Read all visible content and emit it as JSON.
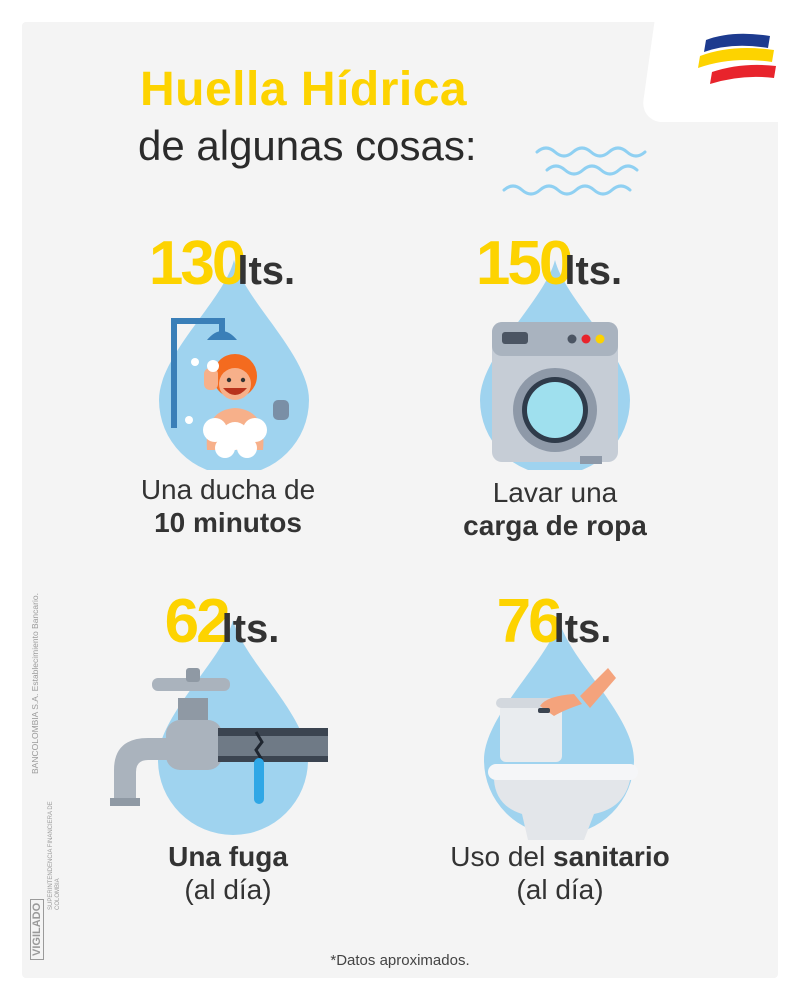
{
  "title": "Huella Hídrica",
  "subtitle": "de algunas cosas:",
  "colors": {
    "yellow": "#fdd300",
    "drop": "#9fd3ef",
    "text": "#333333",
    "background": "#f4f4f4"
  },
  "icons": {
    "logo": "bancolombia-logo-icon",
    "waves": "water-waves-icon"
  },
  "items": [
    {
      "amount": "130",
      "unit": "lts.",
      "line1": "Una ducha de",
      "line2": "10 minutos",
      "icon": "shower-icon"
    },
    {
      "amount": "150",
      "unit": "lts.",
      "line1": "Lavar una",
      "line2": "carga de ropa",
      "icon": "washing-machine-icon"
    },
    {
      "amount": "62",
      "unit": "lts.",
      "line1_bold": "Una fuga",
      "line2": "(al día)",
      "icon": "leaking-faucet-icon"
    },
    {
      "amount": "76",
      "unit": "lts.",
      "line1": "Uso del ",
      "line1_bold": "sanitario",
      "line2": "(al día)",
      "icon": "toilet-icon"
    }
  ],
  "legal": {
    "company": "BANCOLOMBIA S.A. Establecimiento Bancario.",
    "vigilado": "VIGILADO",
    "superintendencia": "SUPERINTENDENCIA FINANCIERA DE COLOMBIA"
  },
  "footnote": "*Datos aproximados."
}
